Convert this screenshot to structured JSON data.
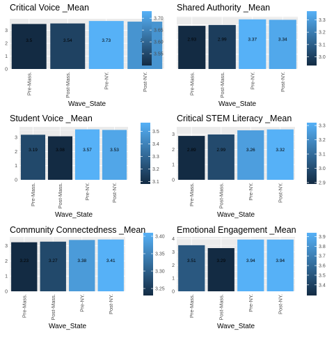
{
  "chart_data": [
    {
      "type": "bar",
      "title": "Critical Voice _Mean",
      "xlabel": "Wave_State",
      "ylabel": "",
      "categories": [
        "Pre-Mass.",
        "Post-Mass.",
        "Pre-NY.",
        "Post-NY."
      ],
      "values": [
        3.5,
        3.54,
        3.73,
        3.68
      ],
      "value_labels": [
        "3.5",
        "3.54",
        "3.73",
        "3.68"
      ],
      "yticks": [
        "0",
        "1",
        "2",
        "3"
      ],
      "ylim": [
        0,
        3.9
      ],
      "colorbar": {
        "min": 3.5,
        "max": 3.73,
        "ticks": [
          "3.55",
          "3.60",
          "3.65",
          "3.70"
        ]
      }
    },
    {
      "type": "bar",
      "title": "Shared Authority _Mean",
      "xlabel": "Wave_State",
      "ylabel": "",
      "categories": [
        "Pre-Mass.",
        "Post-Mass.",
        "Pre-NY.",
        "Post-NY."
      ],
      "values": [
        2.93,
        2.99,
        3.37,
        3.34
      ],
      "value_labels": [
        "2.93",
        "2.99",
        "3.37",
        "3.34"
      ],
      "yticks": [],
      "ylim": [
        0,
        3.55
      ],
      "colorbar": {
        "min": 2.93,
        "max": 3.37,
        "ticks": [
          "3.0",
          "3.1",
          "3.2",
          "3.3"
        ]
      }
    },
    {
      "type": "bar",
      "title": "Student Voice _Mean",
      "xlabel": "Wave_State",
      "ylabel": "",
      "categories": [
        "Pre-Mass.",
        "Post-Mass.",
        "Pre-NY.",
        "Post-NY."
      ],
      "values": [
        3.19,
        3.08,
        3.57,
        3.53
      ],
      "value_labels": [
        "3.19",
        "3.08",
        "3.57",
        "3.53"
      ],
      "yticks": [
        "0",
        "1",
        "2",
        "3"
      ],
      "ylim": [
        0,
        3.75
      ],
      "colorbar": {
        "min": 3.08,
        "max": 3.57,
        "ticks": [
          "3.1",
          "3.2",
          "3.3",
          "3.4",
          "3.5"
        ]
      }
    },
    {
      "type": "bar",
      "title": "Critical STEM Literacy _Mean",
      "xlabel": "Wave_State",
      "ylabel": "",
      "categories": [
        "Pre-Mass.",
        "Post-Mass.",
        "Pre-NY.",
        "Post-NY."
      ],
      "values": [
        2.89,
        2.99,
        3.26,
        3.32
      ],
      "value_labels": [
        "2.89",
        "2.99",
        "3.26",
        "3.32"
      ],
      "yticks": [
        "0",
        "1",
        "2",
        "3"
      ],
      "ylim": [
        0,
        3.49
      ],
      "colorbar": {
        "min": 2.89,
        "max": 3.32,
        "ticks": [
          "2.9",
          "3.0",
          "3.1",
          "3.2",
          "3.3"
        ]
      }
    },
    {
      "type": "bar",
      "title": "Community Connectedness _Mean",
      "xlabel": "Wave_State",
      "ylabel": "",
      "categories": [
        "Pre-Mass.",
        "Post-Mass.",
        "Pre-NY.",
        "Post-NY."
      ],
      "values": [
        3.23,
        3.27,
        3.38,
        3.41
      ],
      "value_labels": [
        "3.23",
        "3.27",
        "3.38",
        "3.41"
      ],
      "yticks": [
        "0",
        "1",
        "2",
        "3"
      ],
      "ylim": [
        0,
        3.58
      ],
      "colorbar": {
        "min": 3.23,
        "max": 3.41,
        "ticks": [
          "3.25",
          "3.30",
          "3.35",
          "3.40"
        ]
      }
    },
    {
      "type": "bar",
      "title": "Emotional Engagement _Mean",
      "xlabel": "Wave_State",
      "ylabel": "",
      "categories": [
        "Pre-Mass.",
        "Post-Mass.",
        "Pre-NY.",
        "Post-NY."
      ],
      "values": [
        3.51,
        3.29,
        3.94,
        3.94
      ],
      "value_labels": [
        "3.51",
        "3.29",
        "3.94",
        "3.94"
      ],
      "yticks": [
        "0",
        "1",
        "2",
        "3",
        "4"
      ],
      "ylim": [
        0,
        4.14
      ],
      "colorbar": {
        "min": 3.29,
        "max": 3.94,
        "ticks": [
          "3.4",
          "3.5",
          "3.6",
          "3.7",
          "3.8",
          "3.9"
        ]
      }
    }
  ],
  "colors": {
    "panel_bg": "#ebebeb",
    "grid": "#ffffff",
    "low": "#132b43",
    "high": "#56b1f7",
    "text": "#000000",
    "axis_text": "#4d4d4d"
  }
}
